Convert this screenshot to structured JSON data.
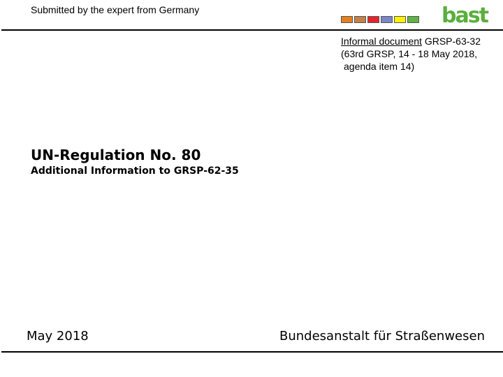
{
  "header": {
    "submitted_by": "Submitted by the expert from Germany"
  },
  "color_strip": [
    "#e6801f",
    "#c4814a",
    "#e3262a",
    "#7b86c6",
    "#fff200",
    "#61b346"
  ],
  "logo": {
    "text": "bast",
    "color": "#5aaf3c"
  },
  "document_info": {
    "label": "Informal document",
    "doc_id": "GRSP-63-32",
    "session_line": "(63rd GRSP, 14 - 18 May 2018,",
    "agenda_line": "agenda item 14)"
  },
  "title": {
    "main": "UN-Regulation No. 80",
    "subtitle": "Additional Information to GRSP-62-35"
  },
  "footer": {
    "date": "May 2018",
    "organization": "Bundesanstalt für Straßenwesen"
  }
}
